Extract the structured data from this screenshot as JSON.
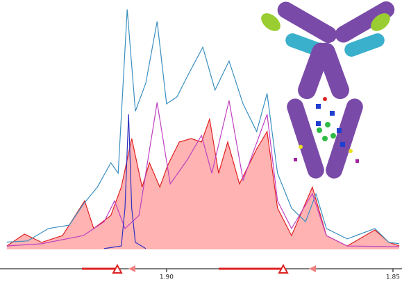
{
  "chart_data": {
    "type": "line",
    "xlim": [
      1.9368,
      1.848
    ],
    "ylim": [
      0,
      100
    ],
    "xticks": [
      {
        "value": 1.9,
        "label": "1.90"
      },
      {
        "value": 1.85,
        "label": "1.85"
      }
    ],
    "series": [
      {
        "name": "",
        "color": "#e02020",
        "fill": "#ffb3b3",
        "area": true,
        "x": [
          1.9353,
          1.9314,
          1.9276,
          1.923,
          1.9181,
          1.9161,
          1.9123,
          1.91,
          1.9077,
          1.9054,
          1.9038,
          1.9015,
          1.8997,
          1.8972,
          1.8946,
          1.8923,
          1.8905,
          1.8885,
          1.8865,
          1.8839,
          1.8801,
          1.8778,
          1.8755,
          1.8724,
          1.8678,
          1.8647,
          1.8601,
          1.854,
          1.8509,
          1.8486
        ],
        "values": [
          1.4,
          6.3,
          2.9,
          5.7,
          20,
          8.6,
          14,
          25.7,
          45.7,
          25.7,
          35.7,
          25.7,
          34.9,
          44.3,
          45.7,
          44.3,
          53.7,
          31.4,
          44.3,
          27,
          41.4,
          48.6,
          17,
          5.7,
          25.7,
          5.7,
          1.4,
          8,
          2.9,
          1.4
        ]
      },
      {
        "name": "",
        "color": "#3a8fc0",
        "x": [
          1.9353,
          1.9307,
          1.9261,
          1.9215,
          1.9184,
          1.9153,
          1.9123,
          1.9107,
          1.9087,
          1.9069,
          1.9046,
          1.9021,
          1.9,
          1.8977,
          1.8954,
          1.892,
          1.8893,
          1.8862,
          1.8831,
          1.8801,
          1.8778,
          1.8755,
          1.8724,
          1.8693,
          1.867,
          1.8647,
          1.8601,
          1.854,
          1.8509,
          1.8486
        ],
        "values": [
          3,
          3.5,
          8.6,
          10,
          18.6,
          25.7,
          35.7,
          31.4,
          99,
          57,
          68.6,
          94,
          60,
          62.9,
          71.4,
          83.4,
          65.7,
          77.7,
          60,
          48.6,
          64.3,
          31.4,
          17,
          11.4,
          22.9,
          8.6,
          4.3,
          8.6,
          2.9,
          2.3
        ]
      },
      {
        "name": "",
        "color": "#c040c0",
        "x": [
          1.9353,
          1.9276,
          1.9184,
          1.9138,
          1.9115,
          1.9092,
          1.9061,
          1.9021,
          1.8992,
          1.8954,
          1.8923,
          1.89,
          1.8862,
          1.8831,
          1.8778,
          1.8755,
          1.8724,
          1.8678,
          1.8647,
          1.8601,
          1.8486
        ],
        "values": [
          1.4,
          2.3,
          5.7,
          11.4,
          20,
          8.6,
          14,
          60.6,
          27,
          37,
          47,
          31.4,
          61.4,
          28.6,
          55.7,
          20,
          8.6,
          23,
          5.7,
          1.4,
          1.1
        ]
      },
      {
        "name": "",
        "color": "#3030c0",
        "x": [
          1.9138,
          1.91,
          1.9092,
          1.9084,
          1.9077,
          1.9069,
          1.9046
        ],
        "values": [
          0.3,
          1.4,
          17,
          55.7,
          17,
          2.9,
          0.3
        ]
      }
    ]
  }
}
